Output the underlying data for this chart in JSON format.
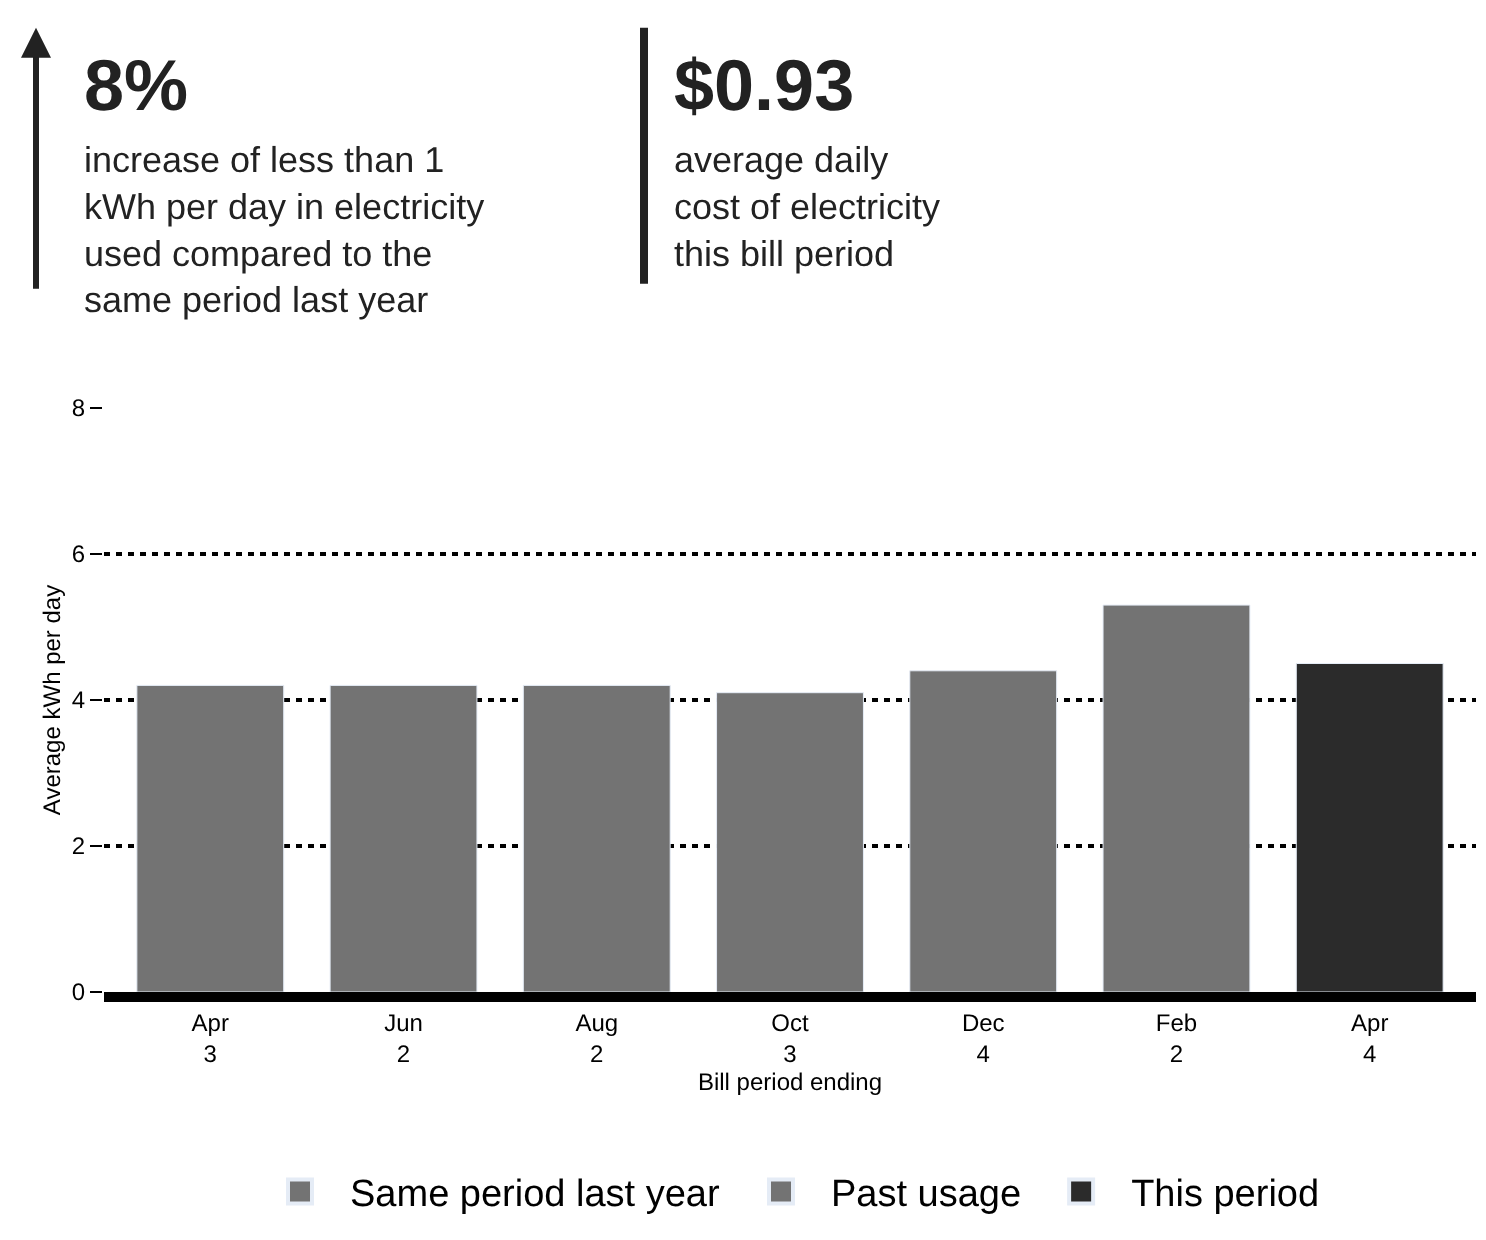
{
  "chart_data": {
    "type": "bar",
    "categories": [
      "Apr\n3",
      "Jun\n2",
      "Aug\n2",
      "Oct\n3",
      "Dec\n4",
      "Feb\n2",
      "Apr\n4"
    ],
    "series": [
      {
        "name": "Same period last year",
        "color": "#737373",
        "values": [
          4.2,
          null,
          null,
          null,
          null,
          null,
          null
        ]
      },
      {
        "name": "Past usage",
        "color": "#737373",
        "values": [
          null,
          4.2,
          4.2,
          4.1,
          4.4,
          5.3,
          null
        ]
      },
      {
        "name": "This period",
        "color": "#2b2b2b",
        "values": [
          null,
          null,
          null,
          null,
          null,
          null,
          4.5
        ]
      }
    ],
    "xlabel": "Bill period ending",
    "ylabel": "Average kWh per day",
    "ylim": [
      0,
      8
    ],
    "yticks": [
      0,
      2,
      4,
      6,
      8
    ],
    "grid": "y",
    "legend": "bottom",
    "annotations": [
      "8%",
      "increase of less than 1\nkWh per day in electricity\nused compared to the\nsame period last year",
      "$0.93",
      "average daily\ncost of electricity\nthis bill period"
    ]
  }
}
